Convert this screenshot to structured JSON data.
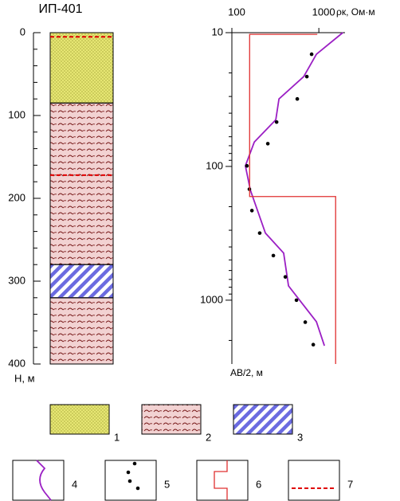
{
  "chart_data": [
    {
      "type": "column",
      "title": "ИП-401",
      "ylabel": "H, м",
      "ylim": [
        0,
        400
      ],
      "yticks": [
        0,
        100,
        200,
        300,
        400
      ],
      "yticks_minor": [
        20,
        40,
        60,
        80,
        120,
        140,
        160,
        180,
        220,
        240,
        260,
        280,
        320,
        340,
        360,
        380
      ],
      "lithologies": [
        {
          "name": "1",
          "color": "#e6e673",
          "pattern": "dots",
          "intervals": [
            [
              0,
              85
            ]
          ]
        },
        {
          "name": "2",
          "color": "#f2d2d2",
          "pattern": "waves",
          "intervals": [
            [
              85,
              280
            ],
            [
              320,
              400
            ]
          ]
        },
        {
          "name": "3",
          "color": "#ffffff",
          "pattern": "hatch",
          "intervals": [
            [
              280,
              320
            ]
          ]
        }
      ],
      "water_level": {
        "name": "7",
        "color": "#e00000",
        "depths": [
          5,
          172
        ]
      }
    },
    {
      "type": "sounding",
      "xlabel": "ρк, Ом·м",
      "ylabel": "AB/2, м",
      "log": true,
      "xlim": [
        100,
        2000
      ],
      "xticks": [
        100,
        1000
      ],
      "ylim": [
        10,
        3000
      ],
      "yticks": [
        10,
        100,
        1000
      ],
      "yticks_minor": [
        20,
        30,
        40,
        50,
        60,
        70,
        80,
        90,
        200,
        300,
        400,
        500,
        600,
        700,
        800,
        900,
        2000
      ],
      "series": [
        {
          "name": "4",
          "style": "line",
          "color": "#9b1fc4",
          "x": [
            1885,
            938,
            670,
            348,
            320,
            181,
            143,
            163,
            243,
            394,
            448,
            938,
            1159
          ],
          "y": [
            10,
            14.5,
            21.3,
            31.3,
            44.8,
            65.8,
            99,
            150,
            315,
            445,
            782,
            1450,
            2190
          ]
        },
        {
          "name": "5",
          "style": "dots",
          "color": "#000000",
          "x": [
            826,
            728,
            565,
            327,
            259,
            149,
            159,
            170,
            209,
            300,
            412,
            553,
            698,
            863
          ],
          "y": [
            14.5,
            21.3,
            31.3,
            46.6,
            67.6,
            99,
            148,
            214,
            315,
            464,
            670,
            1000,
            1460,
            2150
          ]
        },
        {
          "name": "6",
          "style": "step",
          "color": "#e03030",
          "x": [
            960,
            160,
            160,
            1560,
            1560
          ],
          "y": [
            10.3,
            10.3,
            168,
            168,
            3000
          ]
        }
      ]
    }
  ]
}
